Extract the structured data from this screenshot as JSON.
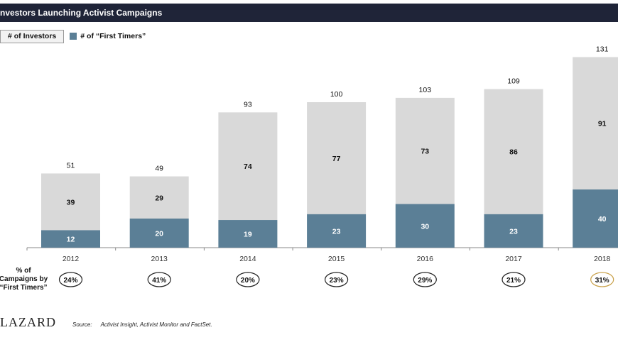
{
  "title": "nvestors Launching Activist Campaigns",
  "legend": {
    "total_label": "# of Investors",
    "first_timers_label": "# of “First Timers”"
  },
  "colors": {
    "title_bar": "#1f2438",
    "returning": "#d9d9d9",
    "first_timers": "#5b7f96",
    "highlight_circle": "#c9a14a"
  },
  "chart_data": {
    "type": "bar",
    "stacked": true,
    "categories": [
      "2012",
      "2013",
      "2014",
      "2015",
      "2016",
      "2017",
      "2018"
    ],
    "series": [
      {
        "name": "# of “First Timers”",
        "values": [
          12,
          20,
          19,
          23,
          30,
          23,
          40
        ]
      },
      {
        "name": "",
        "values": [
          39,
          29,
          74,
          77,
          73,
          86,
          91
        ]
      }
    ],
    "totals": [
      51,
      49,
      93,
      100,
      103,
      109,
      131
    ],
    "ylim": [
      0,
      140
    ],
    "grid": false
  },
  "pct_row": {
    "label_lines": [
      "% of",
      "Campaigns by",
      "“First Timers”"
    ],
    "values": [
      "24%",
      "41%",
      "20%",
      "23%",
      "29%",
      "21%",
      "31%"
    ],
    "highlight_index": 6
  },
  "footer": {
    "logo": "LAZARD",
    "source_label": "Source:",
    "source_text": "Activist Insight, Activist Monitor and FactSet."
  }
}
